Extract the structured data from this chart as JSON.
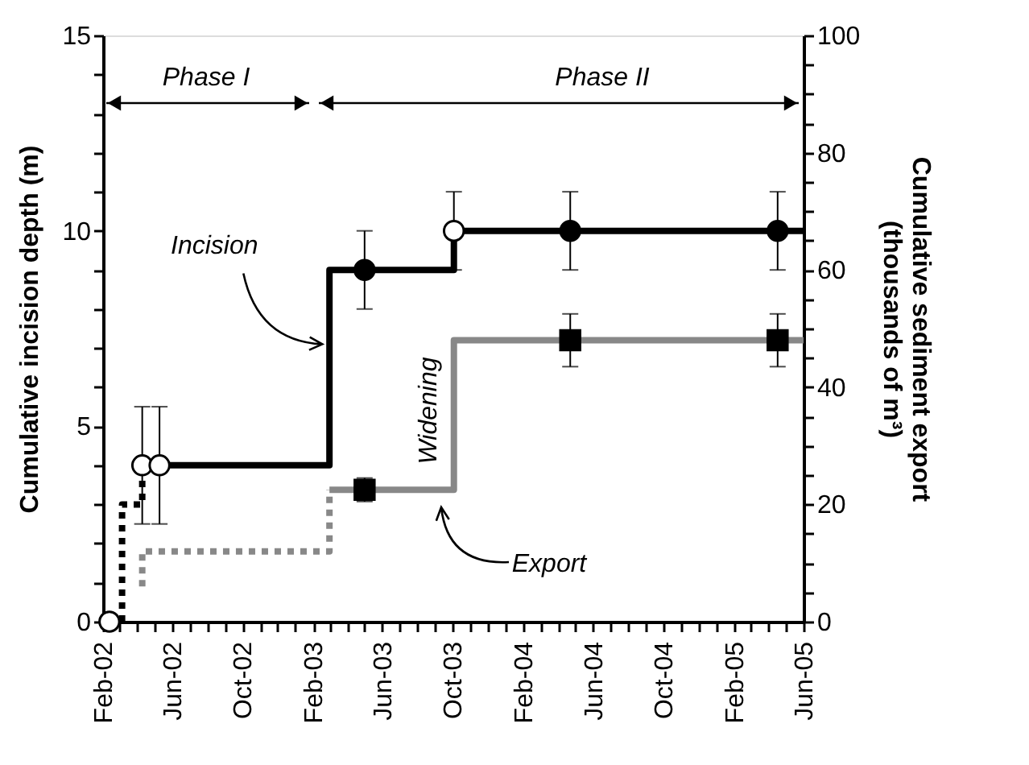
{
  "chart_data": {
    "type": "line",
    "xlim": [
      "2002-02-01",
      "2005-06-01"
    ],
    "xticks": [
      {
        "value": "2002-02-01",
        "label": "Feb-02"
      },
      {
        "value": "2002-03-01",
        "label": null
      },
      {
        "value": "2002-04-01",
        "label": null
      },
      {
        "value": "2002-05-01",
        "label": null
      },
      {
        "value": "2002-06-01",
        "label": "Jun-02"
      },
      {
        "value": "2002-07-01",
        "label": null
      },
      {
        "value": "2002-08-01",
        "label": null
      },
      {
        "value": "2002-09-01",
        "label": null
      },
      {
        "value": "2002-10-01",
        "label": "Oct-02"
      },
      {
        "value": "2002-11-01",
        "label": null
      },
      {
        "value": "2002-12-01",
        "label": null
      },
      {
        "value": "2003-01-01",
        "label": null
      },
      {
        "value": "2003-02-01",
        "label": "Feb-03"
      },
      {
        "value": "2003-03-01",
        "label": null
      },
      {
        "value": "2003-04-01",
        "label": null
      },
      {
        "value": "2003-05-01",
        "label": null
      },
      {
        "value": "2003-06-01",
        "label": "Jun-03"
      },
      {
        "value": "2003-07-01",
        "label": null
      },
      {
        "value": "2003-08-01",
        "label": null
      },
      {
        "value": "2003-09-01",
        "label": null
      },
      {
        "value": "2003-10-01",
        "label": "Oct-03"
      },
      {
        "value": "2003-11-01",
        "label": null
      },
      {
        "value": "2003-12-01",
        "label": null
      },
      {
        "value": "2004-01-01",
        "label": null
      },
      {
        "value": "2004-02-01",
        "label": "Feb-04"
      },
      {
        "value": "2004-03-01",
        "label": null
      },
      {
        "value": "2004-04-01",
        "label": null
      },
      {
        "value": "2004-05-01",
        "label": null
      },
      {
        "value": "2004-06-01",
        "label": "Jun-04"
      },
      {
        "value": "2004-07-01",
        "label": null
      },
      {
        "value": "2004-08-01",
        "label": null
      },
      {
        "value": "2004-09-01",
        "label": null
      },
      {
        "value": "2004-10-01",
        "label": "Oct-04"
      },
      {
        "value": "2004-11-01",
        "label": null
      },
      {
        "value": "2004-12-01",
        "label": null
      },
      {
        "value": "2005-01-01",
        "label": null
      },
      {
        "value": "2005-02-01",
        "label": "Feb-05"
      },
      {
        "value": "2005-03-01",
        "label": null
      },
      {
        "value": "2005-04-01",
        "label": null
      },
      {
        "value": "2005-05-01",
        "label": null
      },
      {
        "value": "2005-06-01",
        "label": "Jun-05"
      }
    ],
    "ylabel": "Cumulative incision depth (m)",
    "y2label": "Cumulative sediment export\n(thousands of m³)",
    "ylim": [
      0,
      15
    ],
    "yticks": [
      0,
      {
        "value": 1,
        "label": null
      },
      {
        "value": 2,
        "label": null
      },
      {
        "value": 3,
        "label": null
      },
      {
        "value": 4,
        "label": null
      },
      5,
      {
        "value": 6,
        "label": null
      },
      {
        "value": 7,
        "label": null
      },
      {
        "value": 8,
        "label": null
      },
      {
        "value": 9,
        "label": null
      },
      10,
      {
        "value": 11,
        "label": null
      },
      {
        "value": 12,
        "label": null
      },
      {
        "value": 13,
        "label": null
      },
      {
        "value": 14,
        "label": null
      },
      15
    ],
    "y2lim": [
      0,
      100
    ],
    "y2ticks": [
      0,
      {
        "value": 5,
        "label": null
      },
      {
        "value": 10,
        "label": null
      },
      {
        "value": 15,
        "label": null
      },
      20,
      {
        "value": 25,
        "label": null
      },
      {
        "value": 30,
        "label": null
      },
      {
        "value": 35,
        "label": null
      },
      40,
      {
        "value": 45,
        "label": null
      },
      {
        "value": 50,
        "label": null
      },
      {
        "value": 55,
        "label": null
      },
      60,
      {
        "value": 65,
        "label": null
      },
      {
        "value": 70,
        "label": null
      },
      {
        "value": 75,
        "label": null
      },
      80,
      {
        "value": 85,
        "label": null
      },
      {
        "value": 90,
        "label": null
      },
      {
        "value": 95,
        "label": null
      },
      100
    ],
    "grid": false,
    "series": [
      {
        "line_style": "dotted",
        "color": "#000000",
        "x": [
          "2002-03-06",
          "2002-03-06",
          "2002-04-10",
          "2002-04-10"
        ],
        "values": [
          0,
          3,
          3,
          4
        ]
      },
      {
        "type": "step",
        "line_style": "solid",
        "color": "#000000",
        "x": [
          "2002-05-10",
          "2003-03-01",
          "2003-10-03",
          "2005-06-01"
        ],
        "values": [
          4,
          9,
          10,
          10
        ]
      },
      {
        "line_style": "dotted",
        "color": "#888888",
        "axis": "y2",
        "x": [
          "2002-04-10",
          "2002-04-10",
          "2003-03-01",
          "2003-03-01"
        ],
        "values": [
          6,
          12,
          12,
          22.5
        ]
      },
      {
        "type": "step",
        "line_style": "solid",
        "color": "#888888",
        "axis": "y2",
        "x": [
          "2003-03-01",
          "2003-10-03",
          "2005-06-01"
        ],
        "values": [
          22.5,
          48,
          48
        ]
      },
      {
        "type": "scatter",
        "marker": "circle",
        "color": "#ffffff",
        "x": [
          "2002-02-12",
          "2002-04-10",
          "2002-05-10",
          "2003-10-03"
        ],
        "values": [
          0,
          4,
          4,
          10
        ],
        "errors": [
          null,
          [
            2.5,
            5.5
          ],
          [
            2.5,
            5.5
          ],
          1
        ]
      },
      {
        "type": "scatter",
        "marker": "circle",
        "color": "#000000",
        "x": [
          "2003-05-01",
          "2004-04-22",
          "2005-04-17"
        ],
        "values": [
          9,
          10,
          10
        ],
        "errors": [
          1,
          1,
          1
        ]
      },
      {
        "type": "scatter",
        "marker": "square",
        "color": "#000000",
        "axis": "y2",
        "x": [
          "2003-05-01",
          "2004-04-22",
          "2005-04-17"
        ],
        "values": [
          22.5,
          48,
          48
        ],
        "errors": [
          2,
          [
            43.5,
            52.5
          ],
          [
            43.5,
            52.5
          ]
        ]
      }
    ],
    "annotations": [
      "Phase I",
      "Phase II",
      {
        "text": "Incision",
        "x": "2003-02-25",
        "y": 7.1
      },
      "Widening",
      "Export"
    ]
  }
}
